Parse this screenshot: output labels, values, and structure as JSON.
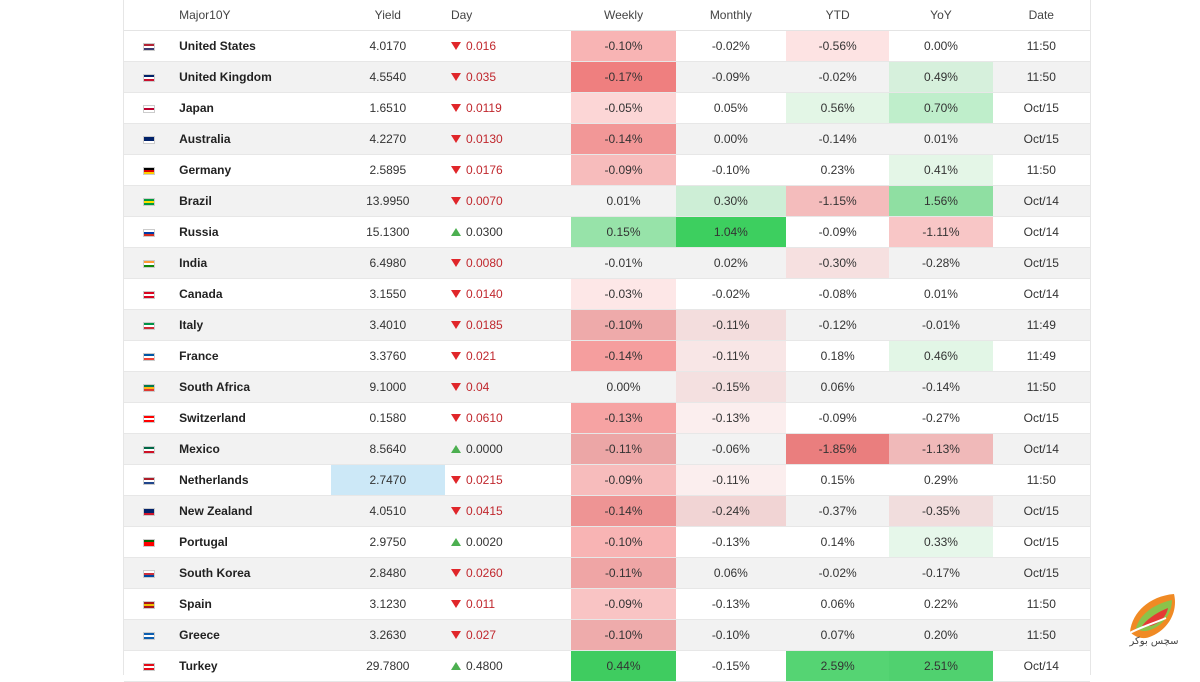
{
  "headers": {
    "name": "Major10Y",
    "yield": "Yield",
    "day": "Day",
    "weekly": "Weekly",
    "monthly": "Monthly",
    "ytd": "YTD",
    "yoy": "YoY",
    "date": "Date"
  },
  "colors": {
    "down": "#e0262a",
    "up": "#4caf50",
    "highlight_yield": "#cce8f7"
  },
  "rows": [
    {
      "flag": [
        "#b22234",
        "#ffffff",
        "#3c3b6e"
      ],
      "name": "United States",
      "yield": "4.0170",
      "dir": "down",
      "day": "0.016",
      "weekly": "-0.10%",
      "weekly_bg": "#f8b4b4",
      "monthly": "-0.02%",
      "monthly_bg": "",
      "ytd": "-0.56%",
      "ytd_bg": "#fde3e3",
      "yoy": "0.00%",
      "yoy_bg": "",
      "date": "11:50"
    },
    {
      "flag": [
        "#012169",
        "#ffffff",
        "#c8102e"
      ],
      "name": "United Kingdom",
      "yield": "4.5540",
      "dir": "down",
      "day": "0.035",
      "weekly": "-0.17%",
      "weekly_bg": "#ef7f7f",
      "monthly": "-0.09%",
      "monthly_bg": "",
      "ytd": "-0.02%",
      "ytd_bg": "",
      "yoy": "0.49%",
      "yoy_bg": "#d6f0dc",
      "date": "11:50"
    },
    {
      "flag": [
        "#ffffff",
        "#bc002d",
        "#ffffff"
      ],
      "name": "Japan",
      "yield": "1.6510",
      "dir": "down",
      "day": "0.0119",
      "weekly": "-0.05%",
      "weekly_bg": "#fcd6d6",
      "monthly": "0.05%",
      "monthly_bg": "",
      "ytd": "0.56%",
      "ytd_bg": "#e3f6e6",
      "yoy": "0.70%",
      "yoy_bg": "#bfeecb",
      "date": "Oct/15"
    },
    {
      "flag": [
        "#012169",
        "#012169",
        "#ffffff"
      ],
      "name": "Australia",
      "yield": "4.2270",
      "dir": "down",
      "day": "0.0130",
      "weekly": "-0.14%",
      "weekly_bg": "#f29797",
      "monthly": "0.00%",
      "monthly_bg": "",
      "ytd": "-0.14%",
      "ytd_bg": "",
      "yoy": "0.01%",
      "yoy_bg": "",
      "date": "Oct/15"
    },
    {
      "flag": [
        "#000000",
        "#dd0000",
        "#ffce00"
      ],
      "name": "Germany",
      "yield": "2.5895",
      "dir": "down",
      "day": "0.0176",
      "weekly": "-0.09%",
      "weekly_bg": "#f7bcbc",
      "monthly": "-0.10%",
      "monthly_bg": "",
      "ytd": "0.23%",
      "ytd_bg": "",
      "yoy": "0.41%",
      "yoy_bg": "#e4f6e7",
      "date": "11:50"
    },
    {
      "flag": [
        "#009c3b",
        "#ffdf00",
        "#009c3b"
      ],
      "name": "Brazil",
      "yield": "13.9950",
      "dir": "down",
      "day": "0.0070",
      "weekly": "0.01%",
      "weekly_bg": "",
      "monthly": "0.30%",
      "monthly_bg": "#cdeed6",
      "ytd": "-1.15%",
      "ytd_bg": "#f4bcbc",
      "yoy": "1.56%",
      "yoy_bg": "#8fdfa2",
      "date": "Oct/14"
    },
    {
      "flag": [
        "#ffffff",
        "#0039a6",
        "#d52b1e"
      ],
      "name": "Russia",
      "yield": "15.1300",
      "dir": "up",
      "day": "0.0300",
      "weekly": "0.15%",
      "weekly_bg": "#97e3a9",
      "monthly": "1.04%",
      "monthly_bg": "#3dcf5f",
      "ytd": "-0.09%",
      "ytd_bg": "",
      "yoy": "-1.11%",
      "yoy_bg": "#f8c6c6",
      "date": "Oct/14"
    },
    {
      "flag": [
        "#ff9933",
        "#ffffff",
        "#138808"
      ],
      "name": "India",
      "yield": "6.4980",
      "dir": "down",
      "day": "0.0080",
      "weekly": "-0.01%",
      "weekly_bg": "",
      "monthly": "0.02%",
      "monthly_bg": "",
      "ytd": "-0.30%",
      "ytd_bg": "#f6e0e0",
      "yoy": "-0.28%",
      "yoy_bg": "",
      "date": "Oct/15"
    },
    {
      "flag": [
        "#d80621",
        "#ffffff",
        "#d80621"
      ],
      "name": "Canada",
      "yield": "3.1550",
      "dir": "down",
      "day": "0.0140",
      "weekly": "-0.03%",
      "weekly_bg": "#fde7e7",
      "monthly": "-0.02%",
      "monthly_bg": "",
      "ytd": "-0.08%",
      "ytd_bg": "",
      "yoy": "0.01%",
      "yoy_bg": "",
      "date": "Oct/14"
    },
    {
      "flag": [
        "#009246",
        "#ffffff",
        "#ce2b37"
      ],
      "name": "Italy",
      "yield": "3.4010",
      "dir": "down",
      "day": "0.0185",
      "weekly": "-0.10%",
      "weekly_bg": "#eeaaaa",
      "monthly": "-0.11%",
      "monthly_bg": "#f3dddd",
      "ytd": "-0.12%",
      "ytd_bg": "",
      "yoy": "-0.01%",
      "yoy_bg": "",
      "date": "11:49"
    },
    {
      "flag": [
        "#0055a4",
        "#ffffff",
        "#ef4135"
      ],
      "name": "France",
      "yield": "3.3760",
      "dir": "down",
      "day": "0.021",
      "weekly": "-0.14%",
      "weekly_bg": "#f59e9e",
      "monthly": "-0.11%",
      "monthly_bg": "#f8e6e6",
      "ytd": "0.18%",
      "ytd_bg": "",
      "yoy": "0.46%",
      "yoy_bg": "#e2f6e6",
      "date": "11:49"
    },
    {
      "flag": [
        "#007a4d",
        "#ffb612",
        "#de3831"
      ],
      "name": "South Africa",
      "yield": "9.1000",
      "dir": "down",
      "day": "0.04",
      "weekly": "0.00%",
      "weekly_bg": "",
      "monthly": "-0.15%",
      "monthly_bg": "#f4e0e0",
      "ytd": "0.06%",
      "ytd_bg": "",
      "yoy": "-0.14%",
      "yoy_bg": "",
      "date": "11:50"
    },
    {
      "flag": [
        "#ff0000",
        "#ffffff",
        "#ff0000"
      ],
      "name": "Switzerland",
      "yield": "0.1580",
      "dir": "down",
      "day": "0.0610",
      "weekly": "-0.13%",
      "weekly_bg": "#f6a3a3",
      "monthly": "-0.13%",
      "monthly_bg": "#fbeeee",
      "ytd": "-0.09%",
      "ytd_bg": "",
      "yoy": "-0.27%",
      "yoy_bg": "",
      "date": "Oct/15"
    },
    {
      "flag": [
        "#006847",
        "#ffffff",
        "#ce1126"
      ],
      "name": "Mexico",
      "yield": "8.5640",
      "dir": "up",
      "day": "0.0000",
      "weekly": "-0.11%",
      "weekly_bg": "#eca6a6",
      "monthly": "-0.06%",
      "monthly_bg": "",
      "ytd": "-1.85%",
      "ytd_bg": "#ea7e7e",
      "yoy": "-1.13%",
      "yoy_bg": "#f0b9b9",
      "date": "Oct/14"
    },
    {
      "flag": [
        "#ae1c28",
        "#ffffff",
        "#21468b"
      ],
      "name": "Netherlands",
      "yield": "2.7470",
      "dir": "down",
      "day": "0.0215",
      "weekly": "-0.09%",
      "weekly_bg": "#f7bcbc",
      "monthly": "-0.11%",
      "monthly_bg": "#fbeeee",
      "ytd": "0.15%",
      "ytd_bg": "",
      "yoy": "0.29%",
      "yoy_bg": "",
      "date": "11:50",
      "yield_highlight": true
    },
    {
      "flag": [
        "#012169",
        "#012169",
        "#cc142b"
      ],
      "name": "New Zealand",
      "yield": "4.0510",
      "dir": "down",
      "day": "0.0415",
      "weekly": "-0.14%",
      "weekly_bg": "#ee9494",
      "monthly": "-0.24%",
      "monthly_bg": "#f1d4d4",
      "ytd": "-0.37%",
      "ytd_bg": "",
      "yoy": "-0.35%",
      "yoy_bg": "#f1dddd",
      "date": "Oct/15"
    },
    {
      "flag": [
        "#006600",
        "#ff0000",
        "#ff0000"
      ],
      "name": "Portugal",
      "yield": "2.9750",
      "dir": "up",
      "day": "0.0020",
      "weekly": "-0.10%",
      "weekly_bg": "#f8b4b4",
      "monthly": "-0.13%",
      "monthly_bg": "",
      "ytd": "0.14%",
      "ytd_bg": "",
      "yoy": "0.33%",
      "yoy_bg": "#e6f7ea",
      "date": "Oct/15"
    },
    {
      "flag": [
        "#ffffff",
        "#cd2e3a",
        "#0047a0"
      ],
      "name": "South Korea",
      "yield": "2.8480",
      "dir": "down",
      "day": "0.0260",
      "weekly": "-0.11%",
      "weekly_bg": "#efa5a5",
      "monthly": "0.06%",
      "monthly_bg": "",
      "ytd": "-0.02%",
      "ytd_bg": "",
      "yoy": "-0.17%",
      "yoy_bg": "",
      "date": "Oct/15"
    },
    {
      "flag": [
        "#aa151b",
        "#f1bf00",
        "#aa151b"
      ],
      "name": "Spain",
      "yield": "3.1230",
      "dir": "down",
      "day": "0.011",
      "weekly": "-0.09%",
      "weekly_bg": "#f9c4c4",
      "monthly": "-0.13%",
      "monthly_bg": "",
      "ytd": "0.06%",
      "ytd_bg": "",
      "yoy": "0.22%",
      "yoy_bg": "",
      "date": "11:50"
    },
    {
      "flag": [
        "#0d5eaf",
        "#ffffff",
        "#0d5eaf"
      ],
      "name": "Greece",
      "yield": "3.2630",
      "dir": "down",
      "day": "0.027",
      "weekly": "-0.10%",
      "weekly_bg": "#eeabab",
      "monthly": "-0.10%",
      "monthly_bg": "",
      "ytd": "0.07%",
      "ytd_bg": "",
      "yoy": "0.20%",
      "yoy_bg": "",
      "date": "11:50"
    },
    {
      "flag": [
        "#e30a17",
        "#ffffff",
        "#e30a17"
      ],
      "name": "Turkey",
      "yield": "29.7800",
      "dir": "up",
      "day": "0.4800",
      "weekly": "0.44%",
      "weekly_bg": "#3fcc60",
      "monthly": "-0.15%",
      "monthly_bg": "",
      "ytd": "2.59%",
      "ytd_bg": "#55d473",
      "yoy": "2.51%",
      "yoy_bg": "#50d16f",
      "date": "Oct/14"
    }
  ],
  "watermark": {
    "text": "سچس بوکر",
    "icon": "colorful-leaf-logo-icon"
  }
}
